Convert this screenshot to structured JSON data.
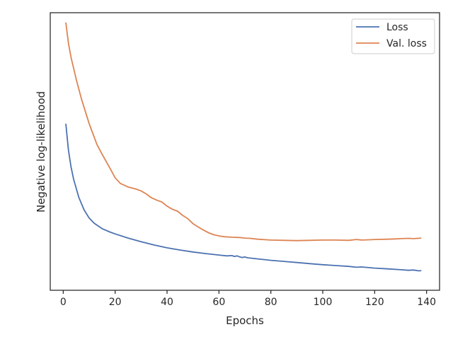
{
  "chart_data": {
    "type": "line",
    "xlabel": "Epochs",
    "ylabel": "Negative log-likelihood",
    "xlim": [
      -5,
      145
    ],
    "ylim": [
      0.0,
      1.0
    ],
    "y_tick_labels_shown": false,
    "x_ticks": [
      0,
      20,
      40,
      60,
      80,
      100,
      120,
      140
    ],
    "x_tick_labels": [
      "0",
      "20",
      "40",
      "60",
      "80",
      "100",
      "120",
      "140"
    ],
    "grid": false,
    "legend": "upper right",
    "series": [
      {
        "name": "Loss",
        "color": "#4C72B0",
        "x": [
          1,
          2,
          3,
          4,
          6,
          8,
          10,
          12,
          15,
          18,
          20,
          25,
          30,
          35,
          40,
          45,
          50,
          55,
          60,
          63,
          65,
          66,
          67,
          68,
          69,
          70,
          71,
          72,
          75,
          80,
          85,
          90,
          95,
          100,
          105,
          110,
          113,
          115,
          120,
          125,
          130,
          133,
          135,
          137,
          138
        ],
        "y": [
          0.6,
          0.505,
          0.445,
          0.4,
          0.335,
          0.29,
          0.26,
          0.241,
          0.222,
          0.21,
          0.203,
          0.188,
          0.175,
          0.163,
          0.153,
          0.145,
          0.138,
          0.132,
          0.127,
          0.124,
          0.125,
          0.122,
          0.124,
          0.12,
          0.118,
          0.12,
          0.117,
          0.116,
          0.113,
          0.108,
          0.104,
          0.1,
          0.096,
          0.092,
          0.089,
          0.086,
          0.083,
          0.084,
          0.08,
          0.077,
          0.074,
          0.072,
          0.073,
          0.07,
          0.071
        ]
      },
      {
        "name": "Val. loss",
        "color": "#DD8452",
        "x": [
          1,
          2,
          3,
          5,
          7,
          10,
          13,
          15,
          18,
          20,
          22,
          25,
          28,
          30,
          32,
          34,
          36,
          38,
          40,
          42,
          44,
          46,
          48,
          50,
          52,
          54,
          56,
          58,
          60,
          62,
          65,
          68,
          70,
          72,
          75,
          80,
          85,
          90,
          95,
          100,
          105,
          110,
          113,
          115,
          118,
          120,
          125,
          128,
          130,
          133,
          135,
          138
        ],
        "y": [
          0.965,
          0.89,
          0.84,
          0.76,
          0.69,
          0.6,
          0.525,
          0.49,
          0.44,
          0.405,
          0.385,
          0.372,
          0.365,
          0.358,
          0.347,
          0.333,
          0.325,
          0.318,
          0.303,
          0.292,
          0.285,
          0.27,
          0.258,
          0.24,
          0.228,
          0.217,
          0.207,
          0.2,
          0.196,
          0.193,
          0.191,
          0.19,
          0.188,
          0.187,
          0.184,
          0.181,
          0.18,
          0.179,
          0.18,
          0.181,
          0.181,
          0.18,
          0.183,
          0.181,
          0.182,
          0.183,
          0.184,
          0.185,
          0.186,
          0.187,
          0.186,
          0.188
        ]
      }
    ]
  }
}
